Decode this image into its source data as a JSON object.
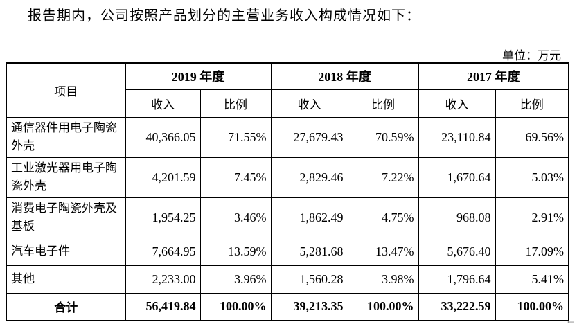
{
  "intro": "报告期内，公司按照产品划分的主营业务收入构成情况如下：",
  "unit": "单位：万元",
  "table": {
    "item_header": "项目",
    "years": [
      "2019 年度",
      "2018 年度",
      "2017 年度"
    ],
    "sub_headers": [
      "收入",
      "比例",
      "收入",
      "比例",
      "收入",
      "比例"
    ],
    "rows": [
      {
        "label": "通信器件用电子陶瓷外壳",
        "values": [
          "40,366.05",
          "71.55%",
          "27,679.43",
          "70.59%",
          "23,110.84",
          "69.56%"
        ]
      },
      {
        "label": "工业激光器用电子陶瓷外壳",
        "values": [
          "4,201.59",
          "7.45%",
          "2,829.46",
          "7.22%",
          "1,670.64",
          "5.03%"
        ]
      },
      {
        "label": "消费电子陶瓷外壳及基板",
        "values": [
          "1,954.25",
          "3.46%",
          "1,862.49",
          "4.75%",
          "968.08",
          "2.91%"
        ]
      },
      {
        "label": "汽车电子件",
        "values": [
          "7,664.95",
          "13.59%",
          "5,281.68",
          "13.47%",
          "5,676.40",
          "17.09%"
        ]
      },
      {
        "label": "其他",
        "values": [
          "2,233.00",
          "3.96%",
          "1,560.28",
          "3.98%",
          "1,796.64",
          "5.41%"
        ]
      }
    ],
    "total": {
      "label": "合计",
      "values": [
        "56,419.84",
        "100.00%",
        "39,213.35",
        "100.00%",
        "33,222.59",
        "100.00%"
      ]
    }
  },
  "corner_mark": "←"
}
